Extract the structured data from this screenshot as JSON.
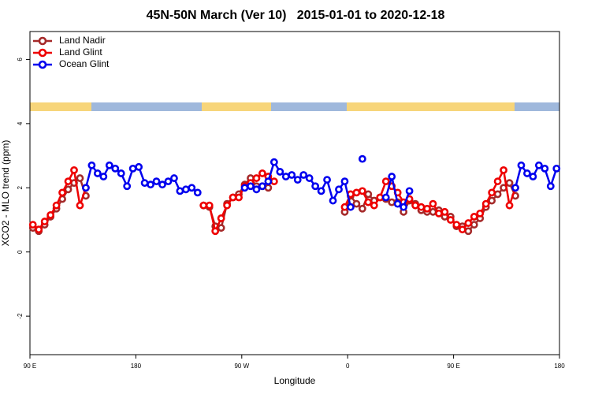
{
  "chart_data": {
    "type": "line",
    "title": "45N-50N March (Ver 10)   2015-01-01 to 2020-12-18",
    "xlabel": "Longitude",
    "ylabel": "XCO2 - MLO trend (ppm)",
    "xlim": [
      90,
      540
    ],
    "ylim": [
      -3.2,
      6.87
    ],
    "xticks": [
      {
        "value": 90,
        "label": "90 E"
      },
      180,
      {
        "value": 270,
        "label": "90 W"
      },
      {
        "value": 360,
        "label": "0"
      },
      {
        "value": 450,
        "label": "90 E"
      },
      {
        "value": 540,
        "label": "180"
      }
    ],
    "yticks": [
      -2,
      0,
      2,
      4,
      6
    ],
    "legend": "top-left",
    "x": [
      92.5,
      97.5,
      102.5,
      107.5,
      112.5,
      117.5,
      122.5,
      127.5,
      132.5,
      137.5,
      142.5,
      147.5,
      152.5,
      157.5,
      162.5,
      167.5,
      172.5,
      177.5,
      182.5,
      187.5,
      192.5,
      197.5,
      202.5,
      207.5,
      212.5,
      217.5,
      222.5,
      227.5,
      232.5,
      237.5,
      242.5,
      247.5,
      252.5,
      257.5,
      262.5,
      267.5,
      272.5,
      277.5,
      282.5,
      287.5,
      292.5,
      297.5,
      302.5,
      307.5,
      312.5,
      317.5,
      322.5,
      327.5,
      332.5,
      337.5,
      342.5,
      347.5,
      352.5,
      357.5,
      362.5,
      367.5,
      372.5,
      377.5,
      382.5,
      387.5,
      392.5,
      397.5,
      402.5,
      407.5,
      412.5,
      417.5,
      422.5,
      427.5,
      432.5,
      437.5,
      442.5,
      447.5,
      452.5,
      457.5,
      462.5,
      467.5,
      472.5,
      477.5,
      482.5,
      487.5,
      492.5,
      497.5,
      502.5,
      507.5,
      512.5,
      517.5,
      522.5,
      527.5,
      532.5,
      537.5
    ],
    "series": [
      {
        "name": "Land Nadir",
        "color": "#a52a2a",
        "values": [
          0.75,
          0.65,
          0.85,
          1.1,
          1.35,
          1.65,
          1.95,
          2.15,
          2.3,
          1.75,
          null,
          null,
          null,
          null,
          null,
          null,
          null,
          null,
          null,
          null,
          null,
          null,
          null,
          null,
          null,
          null,
          null,
          null,
          null,
          1.45,
          1.4,
          0.8,
          0.75,
          1.5,
          1.7,
          1.8,
          2.1,
          2.3,
          2.05,
          2.05,
          2.0,
          null,
          null,
          null,
          null,
          null,
          null,
          null,
          null,
          null,
          null,
          null,
          null,
          1.25,
          1.75,
          1.5,
          1.35,
          1.8,
          1.6,
          1.7,
          1.65,
          1.55,
          1.55,
          1.25,
          1.6,
          1.5,
          1.3,
          1.25,
          1.25,
          1.3,
          1.1,
          1.1,
          0.8,
          0.8,
          0.65,
          0.85,
          1.05,
          1.4,
          1.6,
          1.8,
          2.0,
          2.15,
          1.75,
          null,
          null,
          null,
          null,
          null,
          null,
          null
        ]
      },
      {
        "name": "Land Glint",
        "color": "#ee0000",
        "values": [
          0.85,
          0.7,
          0.95,
          1.15,
          1.45,
          1.85,
          2.2,
          2.55,
          1.45,
          2.0,
          null,
          null,
          null,
          null,
          null,
          null,
          null,
          null,
          null,
          null,
          null,
          null,
          null,
          null,
          null,
          null,
          null,
          null,
          null,
          1.45,
          1.45,
          0.65,
          1.05,
          1.45,
          1.7,
          1.7,
          2.05,
          2.15,
          2.3,
          2.45,
          2.35,
          2.2,
          null,
          null,
          null,
          null,
          null,
          null,
          null,
          null,
          null,
          null,
          null,
          1.4,
          1.8,
          1.85,
          1.9,
          1.55,
          1.45,
          1.7,
          2.2,
          2.05,
          1.85,
          1.55,
          1.65,
          1.45,
          1.4,
          1.35,
          1.5,
          1.2,
          1.25,
          1.0,
          0.85,
          0.7,
          0.9,
          1.1,
          1.2,
          1.5,
          1.85,
          2.2,
          2.55,
          1.45,
          2.0,
          null,
          null,
          null,
          null,
          null,
          null,
          null
        ]
      },
      {
        "name": "Ocean Glint",
        "color": "#0000ee",
        "values": [
          null,
          null,
          null,
          null,
          null,
          null,
          null,
          null,
          null,
          2.0,
          2.7,
          2.45,
          2.35,
          2.7,
          2.6,
          2.45,
          2.05,
          2.6,
          2.65,
          2.15,
          2.1,
          2.2,
          2.1,
          2.2,
          2.3,
          1.9,
          1.95,
          2.0,
          1.85,
          null,
          null,
          null,
          null,
          null,
          null,
          null,
          2.0,
          2.05,
          1.95,
          2.05,
          2.2,
          2.8,
          2.5,
          2.35,
          2.4,
          2.25,
          2.4,
          2.3,
          2.05,
          1.9,
          2.25,
          1.6,
          1.95,
          2.2,
          1.4,
          null,
          2.9,
          null,
          null,
          null,
          1.7,
          2.35,
          1.5,
          1.4,
          1.9,
          null,
          null,
          null,
          null,
          null,
          null,
          null,
          null,
          null,
          null,
          null,
          null,
          null,
          null,
          null,
          null,
          null,
          2.0,
          2.7,
          2.45,
          2.35,
          2.7,
          2.6,
          2.05,
          2.6
        ]
      }
    ]
  }
}
